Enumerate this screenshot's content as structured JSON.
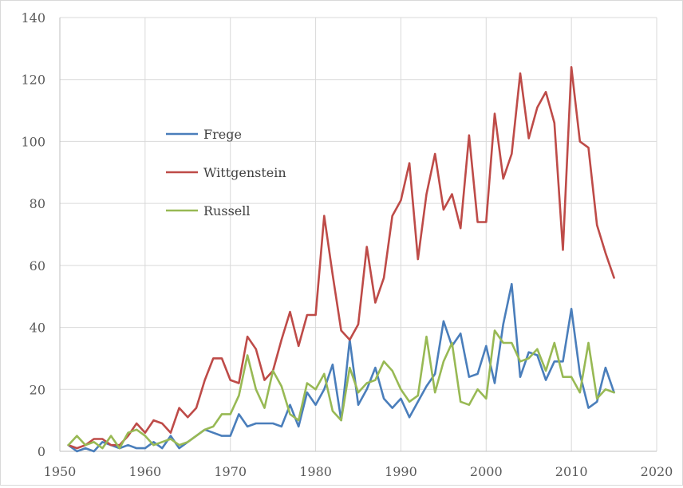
{
  "chart_data": {
    "type": "line",
    "title": "",
    "xlabel": "",
    "ylabel": "",
    "xlim": [
      1950,
      2020
    ],
    "ylim": [
      0,
      140
    ],
    "x_ticks": [
      1950,
      1960,
      1970,
      1980,
      1990,
      2000,
      2010,
      2020
    ],
    "y_ticks": [
      0,
      20,
      40,
      60,
      80,
      100,
      120,
      140
    ],
    "grid": true,
    "legend_position": "upper-left inside plot",
    "x": [
      1951,
      1952,
      1953,
      1954,
      1955,
      1956,
      1957,
      1958,
      1959,
      1960,
      1961,
      1962,
      1963,
      1964,
      1965,
      1966,
      1967,
      1968,
      1969,
      1970,
      1971,
      1972,
      1973,
      1974,
      1975,
      1976,
      1977,
      1978,
      1979,
      1980,
      1981,
      1982,
      1983,
      1984,
      1985,
      1986,
      1987,
      1988,
      1989,
      1990,
      1991,
      1992,
      1993,
      1994,
      1995,
      1996,
      1997,
      1998,
      1999,
      2000,
      2001,
      2002,
      2003,
      2004,
      2005,
      2006,
      2007,
      2008,
      2009,
      2010,
      2011,
      2012,
      2013,
      2014,
      2015
    ],
    "series": [
      {
        "name": "Frege",
        "color": "#4a7ebb",
        "values": [
          2,
          0,
          1,
          0,
          3,
          2,
          1,
          2,
          1,
          1,
          3,
          1,
          5,
          1,
          3,
          5,
          7,
          6,
          5,
          5,
          12,
          8,
          9,
          9,
          9,
          8,
          15,
          8,
          19,
          15,
          20,
          28,
          10,
          36,
          15,
          20,
          27,
          17,
          14,
          17,
          11,
          16,
          21,
          25,
          42,
          34,
          38,
          24,
          25,
          34,
          22,
          41,
          54,
          24,
          32,
          31,
          23,
          29,
          29,
          46,
          25,
          14,
          16,
          27,
          19
        ]
      },
      {
        "name": "Wittgenstein",
        "color": "#be4b48",
        "values": [
          2,
          1,
          2,
          4,
          4,
          2,
          2,
          5,
          9,
          6,
          10,
          9,
          6,
          14,
          11,
          14,
          23,
          30,
          30,
          23,
          22,
          37,
          33,
          23,
          26,
          36,
          45,
          34,
          44,
          44,
          76,
          57,
          39,
          36,
          41,
          66,
          48,
          56,
          76,
          81,
          93,
          62,
          83,
          96,
          78,
          83,
          72,
          102,
          74,
          74,
          109,
          88,
          96,
          122,
          101,
          111,
          116,
          106,
          65,
          124,
          100,
          98,
          73,
          64,
          56
        ]
      },
      {
        "name": "Russell",
        "color": "#98b954",
        "values": [
          2,
          5,
          2,
          3,
          1,
          5,
          1,
          6,
          7,
          5,
          2,
          3,
          4,
          2,
          3,
          5,
          7,
          8,
          12,
          12,
          18,
          31,
          20,
          14,
          26,
          21,
          12,
          10,
          22,
          20,
          25,
          13,
          10,
          27,
          19,
          22,
          23,
          29,
          26,
          20,
          16,
          18,
          37,
          19,
          29,
          35,
          16,
          15,
          20,
          17,
          39,
          35,
          35,
          29,
          30,
          33,
          26,
          35,
          24,
          24,
          19,
          35,
          17,
          20,
          19
        ]
      }
    ]
  }
}
